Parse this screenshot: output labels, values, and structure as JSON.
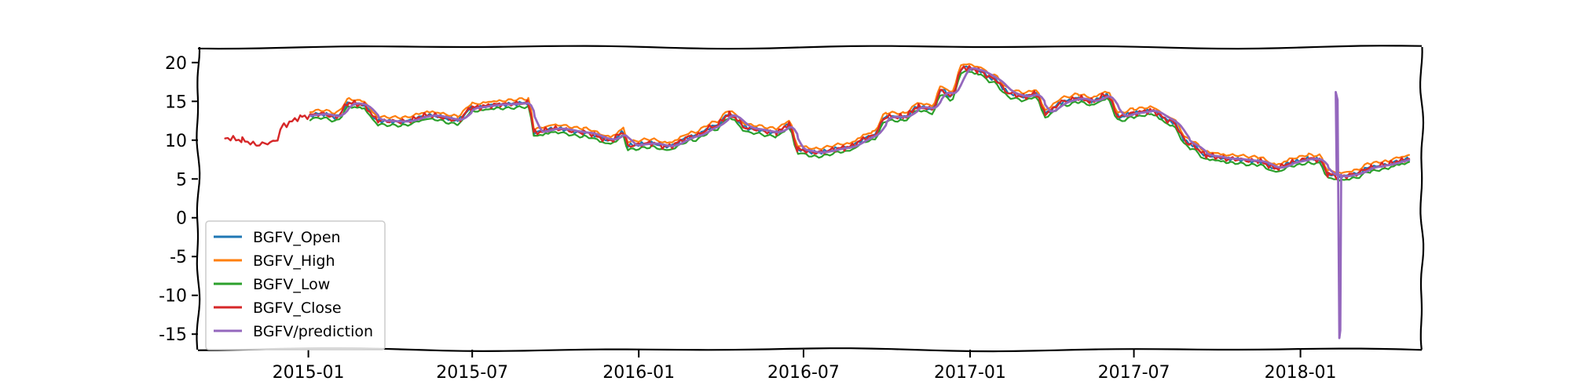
{
  "chart_data": {
    "type": "line",
    "title": "",
    "xlabel": "",
    "ylabel": "",
    "xlim": [
      "2014-09-01",
      "2018-05-15"
    ],
    "ylim": [
      -17,
      22
    ],
    "x_ticks": [
      "2015-01",
      "2015-07",
      "2016-01",
      "2016-07",
      "2017-01",
      "2017-07",
      "2018-01"
    ],
    "y_ticks": [
      -15,
      -10,
      -5,
      0,
      5,
      10,
      15,
      20
    ],
    "grid": false,
    "legend_position": "lower-left",
    "series": [
      {
        "name": "BGFV_Open",
        "color": "#1f77b4"
      },
      {
        "name": "BGFV_High",
        "color": "#ff7f0e"
      },
      {
        "name": "BGFV_Low",
        "color": "#2ca02c"
      },
      {
        "name": "BGFV_Close",
        "color": "#d62728"
      },
      {
        "name": "BGFV/prediction",
        "color": "#9467bd"
      }
    ],
    "close_points": [
      [
        "2014-10-01",
        10.3
      ],
      [
        "2014-10-20",
        10.0
      ],
      [
        "2014-11-05",
        9.4
      ],
      [
        "2014-11-25",
        9.8
      ],
      [
        "2014-12-05",
        12.0
      ],
      [
        "2014-12-25",
        13.0
      ],
      [
        "2015-01-15",
        13.4
      ],
      [
        "2015-02-01",
        13.0
      ],
      [
        "2015-02-15",
        14.8
      ],
      [
        "2015-03-01",
        14.6
      ],
      [
        "2015-03-20",
        12.5
      ],
      [
        "2015-04-15",
        12.4
      ],
      [
        "2015-05-15",
        13.2
      ],
      [
        "2015-06-15",
        12.6
      ],
      [
        "2015-07-01",
        14.2
      ],
      [
        "2015-08-01",
        14.6
      ],
      [
        "2015-09-01",
        14.8
      ],
      [
        "2015-09-08",
        11.0
      ],
      [
        "2015-10-01",
        11.5
      ],
      [
        "2015-11-01",
        11.0
      ],
      [
        "2015-12-01",
        10.0
      ],
      [
        "2015-12-15",
        11.0
      ],
      [
        "2015-12-20",
        9.3
      ],
      [
        "2016-01-15",
        9.6
      ],
      [
        "2016-02-01",
        9.2
      ],
      [
        "2016-03-01",
        10.5
      ],
      [
        "2016-03-25",
        11.8
      ],
      [
        "2016-04-10",
        13.3
      ],
      [
        "2016-05-01",
        11.5
      ],
      [
        "2016-06-01",
        11.0
      ],
      [
        "2016-06-15",
        12.0
      ],
      [
        "2016-06-25",
        8.8
      ],
      [
        "2016-07-15",
        8.4
      ],
      [
        "2016-08-15",
        9.0
      ],
      [
        "2016-09-15",
        10.5
      ],
      [
        "2016-10-01",
        13.0
      ],
      [
        "2016-10-20",
        13.0
      ],
      [
        "2016-11-05",
        14.3
      ],
      [
        "2016-11-20",
        14.0
      ],
      [
        "2016-12-01",
        16.5
      ],
      [
        "2016-12-10",
        15.6
      ],
      [
        "2016-12-25",
        19.4
      ],
      [
        "2017-01-10",
        19.0
      ],
      [
        "2017-01-25",
        18.0
      ],
      [
        "2017-02-15",
        16.0
      ],
      [
        "2017-03-01",
        15.6
      ],
      [
        "2017-03-15",
        16.0
      ],
      [
        "2017-03-25",
        13.5
      ],
      [
        "2017-04-15",
        15.0
      ],
      [
        "2017-05-01",
        15.4
      ],
      [
        "2017-05-15",
        15.0
      ],
      [
        "2017-06-01",
        15.8
      ],
      [
        "2017-06-15",
        13.0
      ],
      [
        "2017-07-01",
        13.5
      ],
      [
        "2017-07-20",
        13.8
      ],
      [
        "2017-08-10",
        12.5
      ],
      [
        "2017-09-01",
        9.5
      ],
      [
        "2017-09-20",
        8.0
      ],
      [
        "2017-10-15",
        7.6
      ],
      [
        "2017-11-15",
        7.3
      ],
      [
        "2017-12-05",
        6.4
      ],
      [
        "2017-12-25",
        7.2
      ],
      [
        "2018-01-10",
        7.6
      ],
      [
        "2018-01-22",
        7.5
      ],
      [
        "2018-02-01",
        5.6
      ],
      [
        "2018-02-15",
        5.3
      ],
      [
        "2018-03-01",
        5.6
      ],
      [
        "2018-03-20",
        6.5
      ],
      [
        "2018-04-05",
        6.8
      ],
      [
        "2018-04-20",
        7.3
      ],
      [
        "2018-05-01",
        7.6
      ]
    ],
    "prediction_spike": {
      "date": "2018-02-10",
      "max": 16.2,
      "min": -15.5
    }
  }
}
